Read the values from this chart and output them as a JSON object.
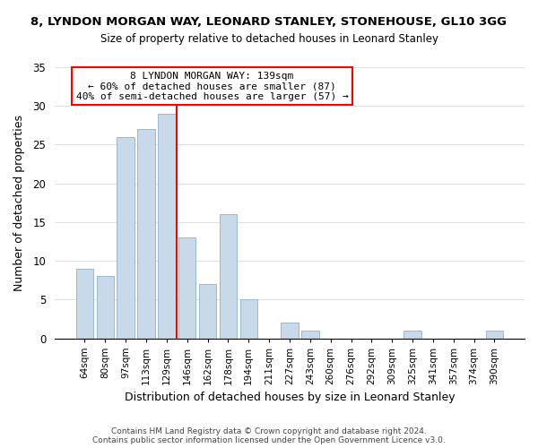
{
  "title": "8, LYNDON MORGAN WAY, LEONARD STANLEY, STONEHOUSE, GL10 3GG",
  "subtitle": "Size of property relative to detached houses in Leonard Stanley",
  "xlabel": "Distribution of detached houses by size in Leonard Stanley",
  "ylabel": "Number of detached properties",
  "footer_lines": [
    "Contains HM Land Registry data © Crown copyright and database right 2024.",
    "Contains public sector information licensed under the Open Government Licence v3.0."
  ],
  "bar_labels": [
    "64sqm",
    "80sqm",
    "97sqm",
    "113sqm",
    "129sqm",
    "146sqm",
    "162sqm",
    "178sqm",
    "194sqm",
    "211sqm",
    "227sqm",
    "243sqm",
    "260sqm",
    "276sqm",
    "292sqm",
    "309sqm",
    "325sqm",
    "341sqm",
    "357sqm",
    "374sqm",
    "390sqm"
  ],
  "bar_values": [
    9,
    8,
    26,
    27,
    29,
    13,
    7,
    16,
    5,
    0,
    2,
    1,
    0,
    0,
    0,
    0,
    1,
    0,
    0,
    0,
    1
  ],
  "bar_color": "#c8daea",
  "bar_edge_color": "#9ab8cf",
  "highlight_line_index": 4,
  "highlight_line_color": "red",
  "annotation_line1": "8 LYNDON MORGAN WAY: 139sqm",
  "annotation_line2": "← 60% of detached houses are smaller (87)",
  "annotation_line3": "40% of semi-detached houses are larger (57) →",
  "annotation_box_color": "white",
  "annotation_box_edge_color": "red",
  "ylim": [
    0,
    35
  ],
  "yticks": [
    0,
    5,
    10,
    15,
    20,
    25,
    30,
    35
  ],
  "background_color": "white",
  "grid_color": "#e0e0e0"
}
